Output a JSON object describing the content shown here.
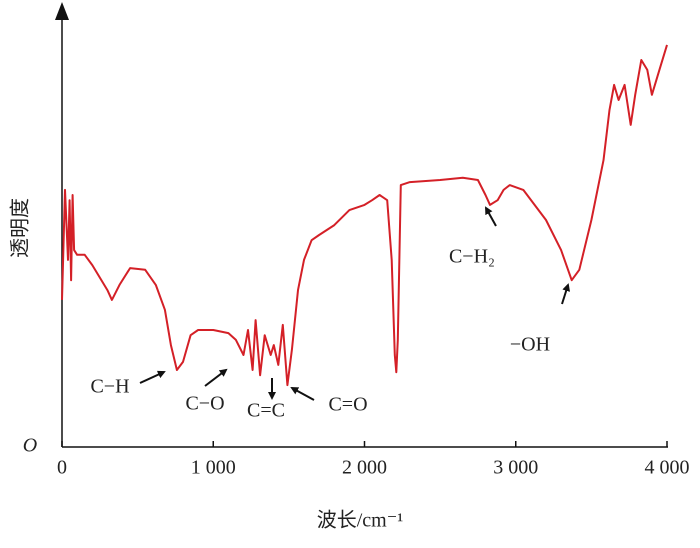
{
  "chart_data": {
    "type": "line",
    "xlabel": "波长/cm⁻¹",
    "ylabel": "透明度",
    "origin_label": "O",
    "xlim": [
      0,
      4000
    ],
    "ylim": [
      0,
      100
    ],
    "xticks": [
      0,
      {
        "value": 1000,
        "label": "1 000"
      },
      {
        "value": 2000,
        "label": "2 000"
      },
      {
        "value": 3000,
        "label": "3 000"
      },
      {
        "value": 4000,
        "label": "4 000"
      }
    ],
    "series": [
      {
        "color": "#d42027",
        "x": [
          0,
          20,
          40,
          50,
          60,
          70,
          80,
          100,
          150,
          200,
          300,
          330,
          380,
          450,
          550,
          620,
          680,
          720,
          760,
          800,
          850,
          900,
          1000,
          1100,
          1150,
          1200,
          1230,
          1260,
          1280,
          1310,
          1340,
          1380,
          1400,
          1430,
          1460,
          1490,
          1520,
          1560,
          1600,
          1650,
          1700,
          1800,
          1900,
          2000,
          2050,
          2100,
          2150,
          2180,
          2200,
          2210,
          2220,
          2240,
          2300,
          2500,
          2650,
          2750,
          2800,
          2830,
          2880,
          2920,
          2960,
          3050,
          3200,
          3300,
          3370,
          3420,
          3500,
          3580,
          3620,
          3650,
          3680,
          3720,
          3760,
          3790,
          3830,
          3870,
          3900,
          3950,
          4000
        ],
        "values": [
          34.2,
          59.8,
          43.5,
          57.4,
          38.8,
          58.6,
          45.8,
          44.7,
          44.7,
          42.3,
          36.5,
          34.2,
          37.7,
          41.6,
          41.2,
          37.7,
          31.9,
          23.7,
          17.9,
          19.8,
          26.0,
          27.2,
          27.2,
          26.5,
          24.9,
          21.4,
          27.2,
          17.9,
          29.5,
          16.7,
          26.0,
          21.4,
          23.7,
          19.1,
          28.4,
          14.4,
          22.6,
          36.5,
          43.5,
          48.1,
          49.3,
          51.6,
          55.1,
          56.3,
          57.4,
          58.6,
          57.4,
          43.5,
          21.4,
          17.4,
          24.9,
          60.9,
          61.6,
          62.1,
          62.6,
          62.1,
          58.6,
          56.3,
          57.4,
          59.8,
          60.9,
          59.8,
          52.8,
          45.8,
          38.8,
          41.2,
          52.8,
          66.7,
          78.4,
          84.2,
          80.7,
          84.2,
          74.9,
          81.9,
          90.0,
          87.7,
          81.9,
          87.7,
          93.5
        ]
      }
    ],
    "annotations": [
      "C−H",
      "C−O",
      "C=C",
      "C=O",
      "C−H₂",
      "−OH"
    ]
  }
}
